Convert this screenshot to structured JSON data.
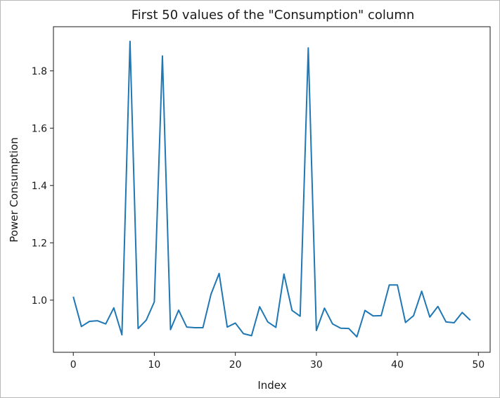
{
  "chart_data": {
    "type": "line",
    "title": "First 50 values of the \"Consumption\" column",
    "xlabel": "Index",
    "ylabel": "Power Consumption",
    "xlim": [
      -2.45,
      51.45
    ],
    "ylim": [
      0.818,
      1.954
    ],
    "xticks": [
      0,
      10,
      20,
      30,
      40,
      50
    ],
    "yticks": [
      1.0,
      1.2,
      1.4,
      1.6,
      1.8
    ],
    "xtick_labels": [
      "0",
      "10",
      "20",
      "30",
      "40",
      "50"
    ],
    "ytick_labels": [
      "1.0",
      "1.2",
      "1.4",
      "1.6",
      "1.8"
    ],
    "grid": false,
    "series": [
      {
        "color": "#1f77b4",
        "x": [
          0,
          1,
          2,
          3,
          4,
          5,
          6,
          7,
          8,
          9,
          10,
          11,
          12,
          13,
          14,
          15,
          16,
          17,
          18,
          19,
          20,
          21,
          22,
          23,
          24,
          25,
          26,
          27,
          28,
          29,
          30,
          31,
          32,
          33,
          34,
          35,
          36,
          37,
          38,
          39,
          40,
          41,
          42,
          43,
          44,
          45,
          46,
          47,
          48,
          49
        ],
        "values": [
          1.012,
          0.908,
          0.926,
          0.928,
          0.917,
          0.973,
          0.879,
          1.903,
          0.901,
          0.93,
          0.994,
          1.852,
          0.897,
          0.965,
          0.906,
          0.904,
          0.904,
          1.021,
          1.093,
          0.906,
          0.92,
          0.883,
          0.876,
          0.977,
          0.924,
          0.905,
          1.091,
          0.964,
          0.944,
          1.88,
          0.894,
          0.972,
          0.917,
          0.902,
          0.901,
          0.872,
          0.964,
          0.945,
          0.946,
          1.053,
          1.053,
          0.922,
          0.946,
          1.031,
          0.941,
          0.978,
          0.924,
          0.921,
          0.957,
          0.93
        ]
      }
    ]
  }
}
